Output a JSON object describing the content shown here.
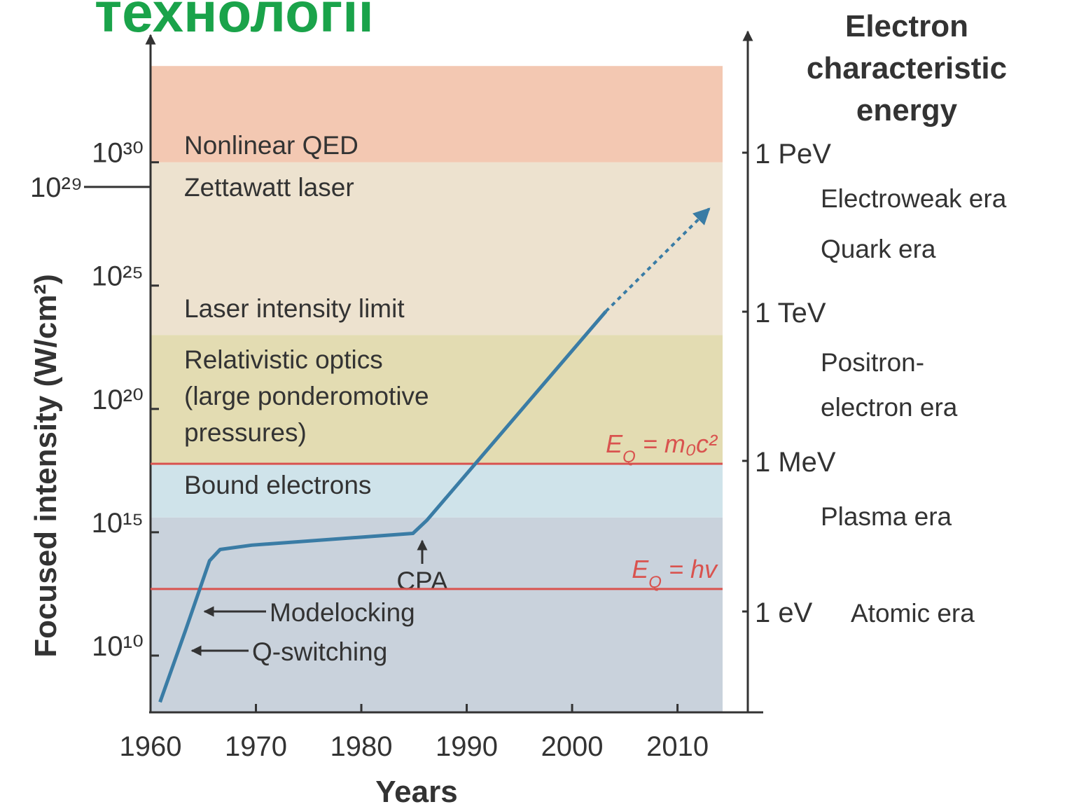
{
  "title": "технології",
  "chart_data": {
    "type": "line",
    "x_label": "Years",
    "y_label": "Focused intensity (W/cm²)",
    "y_scale": "log",
    "xlim": [
      1960,
      2018
    ],
    "ylim": [
      50000000.0,
      2e+35
    ],
    "xticks": [
      1960,
      1970,
      1980,
      1990,
      2000,
      2010
    ],
    "yticks": [
      {
        "value": 10000000000.0,
        "label": "10¹⁰"
      },
      {
        "value": 1000000000000000.0,
        "label": "10¹⁵"
      },
      {
        "value": 1e+20,
        "label": "10²⁰"
      },
      {
        "value": 1e+25,
        "label": "10²⁵"
      },
      {
        "value": 1e+29,
        "label": "10²⁹"
      },
      {
        "value": 1e+30,
        "label": "10³⁰"
      }
    ],
    "bands": [
      {
        "from": 50000000.0,
        "to": 4000000000000000.0,
        "color": "#c9d2dc"
      },
      {
        "from": 4000000000000000.0,
        "to": 6e+17,
        "color": "#cfe3ea"
      },
      {
        "from": 6e+17,
        "to": 1e+23,
        "color": "#e3dcb2"
      },
      {
        "from": 1e+23,
        "to": 1e+30,
        "color": "#ede2cf"
      },
      {
        "from": 1e+30,
        "to": 8e+33,
        "color": "#f3c8b2"
      }
    ],
    "thresholds": [
      {
        "value": 6e+17,
        "color": "#d9534f",
        "E": "E",
        "sub": "Q",
        "rest": " = m₀c²"
      },
      {
        "value": 5000000000000.0,
        "color": "#d9534f",
        "E": "E",
        "sub": "Q",
        "rest": " = hv"
      }
    ],
    "series": [
      {
        "color": "#3a7ca5",
        "style": "solid",
        "x": [
          1960.9,
          1963.3,
          1965.6,
          1966.6,
          1969.6,
          1984.9,
          1986.2,
          2003.2
        ],
        "values": [
          130000000.0,
          100000000000.0,
          70000000000000.0,
          200000000000000.0,
          300000000000000.0,
          900000000000000.0,
          3000000000000000.0,
          9e+23
        ]
      },
      {
        "color": "#3a7ca5",
        "style": "dotted",
        "x": [
          2003.2,
          2013
        ],
        "values": [
          9e+23,
          1.3e+28
        ]
      }
    ],
    "region_labels": [
      "Nonlinear QED",
      "Zettawatt laser",
      "Laser intensity limit",
      "Relativistic optics",
      "(large ponderomotive",
      "pressures)",
      "Bound electrons"
    ],
    "annotations": [
      "CPA",
      "Modelocking",
      "Q-switching"
    ],
    "y2_title": [
      "Electron",
      "characteristic",
      "energy"
    ],
    "y2_labels": [
      "1 PeV",
      "1 TeV",
      "1 MeV",
      "1 eV"
    ],
    "eras": [
      "Electroweak era",
      "Quark era",
      "Positron-",
      "electron era",
      "Plasma era",
      "Atomic era"
    ]
  }
}
